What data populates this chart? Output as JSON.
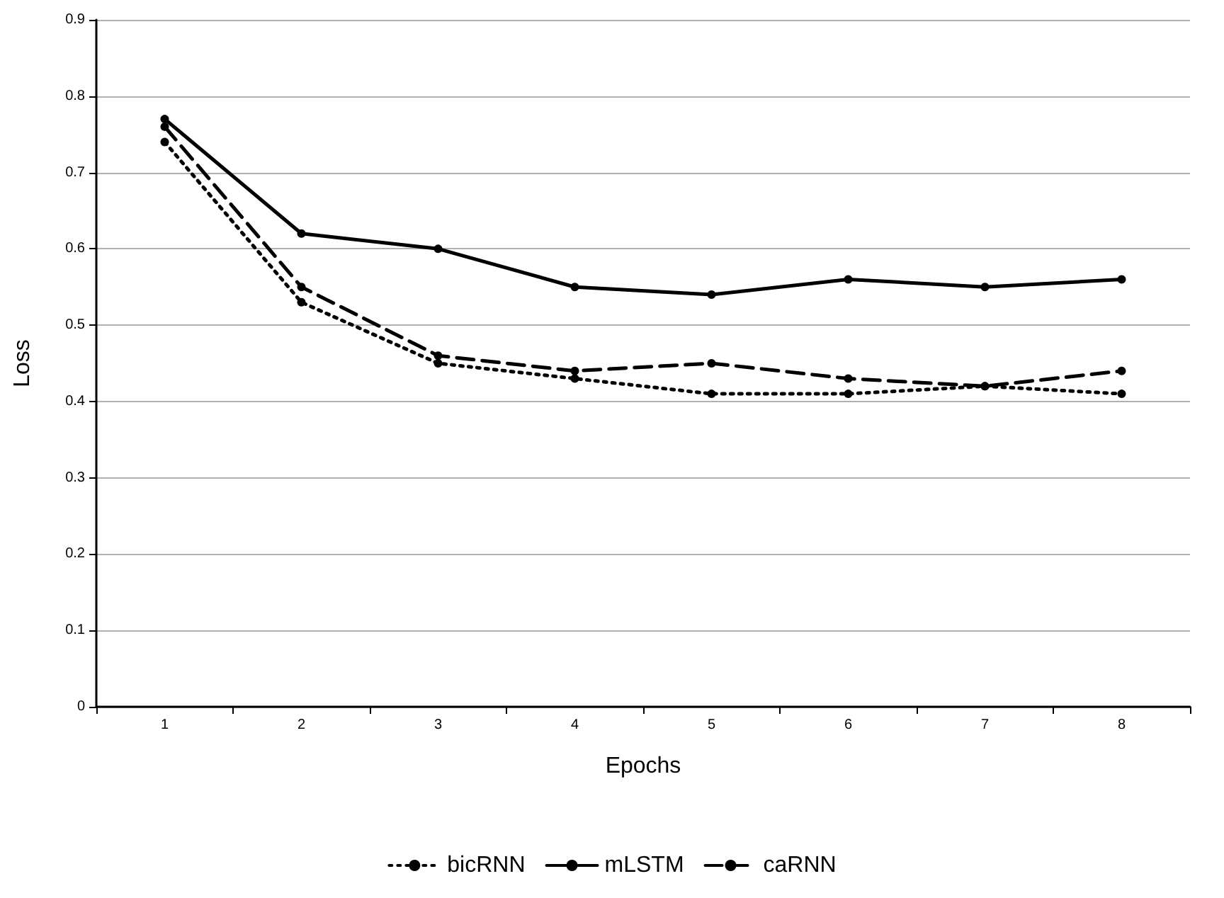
{
  "chart_data": {
    "type": "line",
    "xlabel": "Epochs",
    "ylabel": "Loss",
    "categories": [
      "1",
      "2",
      "3",
      "4",
      "5",
      "6",
      "7",
      "8"
    ],
    "series": [
      {
        "name": "bicRNN",
        "color": "#000000",
        "line_style": "dotted",
        "values": [
          0.74,
          0.53,
          0.45,
          0.43,
          0.41,
          0.41,
          0.42,
          0.41
        ]
      },
      {
        "name": "mLSTM",
        "color": "#000000",
        "line_style": "solid",
        "values": [
          0.77,
          0.62,
          0.6,
          0.55,
          0.54,
          0.56,
          0.55,
          0.56
        ]
      },
      {
        "name": "caRNN",
        "color": "#000000",
        "line_style": "dashed",
        "values": [
          0.76,
          0.55,
          0.46,
          0.44,
          0.45,
          0.43,
          0.42,
          0.44
        ]
      }
    ],
    "ylim": [
      0,
      0.9
    ],
    "yticks": [
      0,
      0.1,
      0.2,
      0.3,
      0.4,
      0.5,
      0.6,
      0.7,
      0.8,
      0.9
    ],
    "grid": "y",
    "legend": "bottom",
    "marker": "circle"
  }
}
